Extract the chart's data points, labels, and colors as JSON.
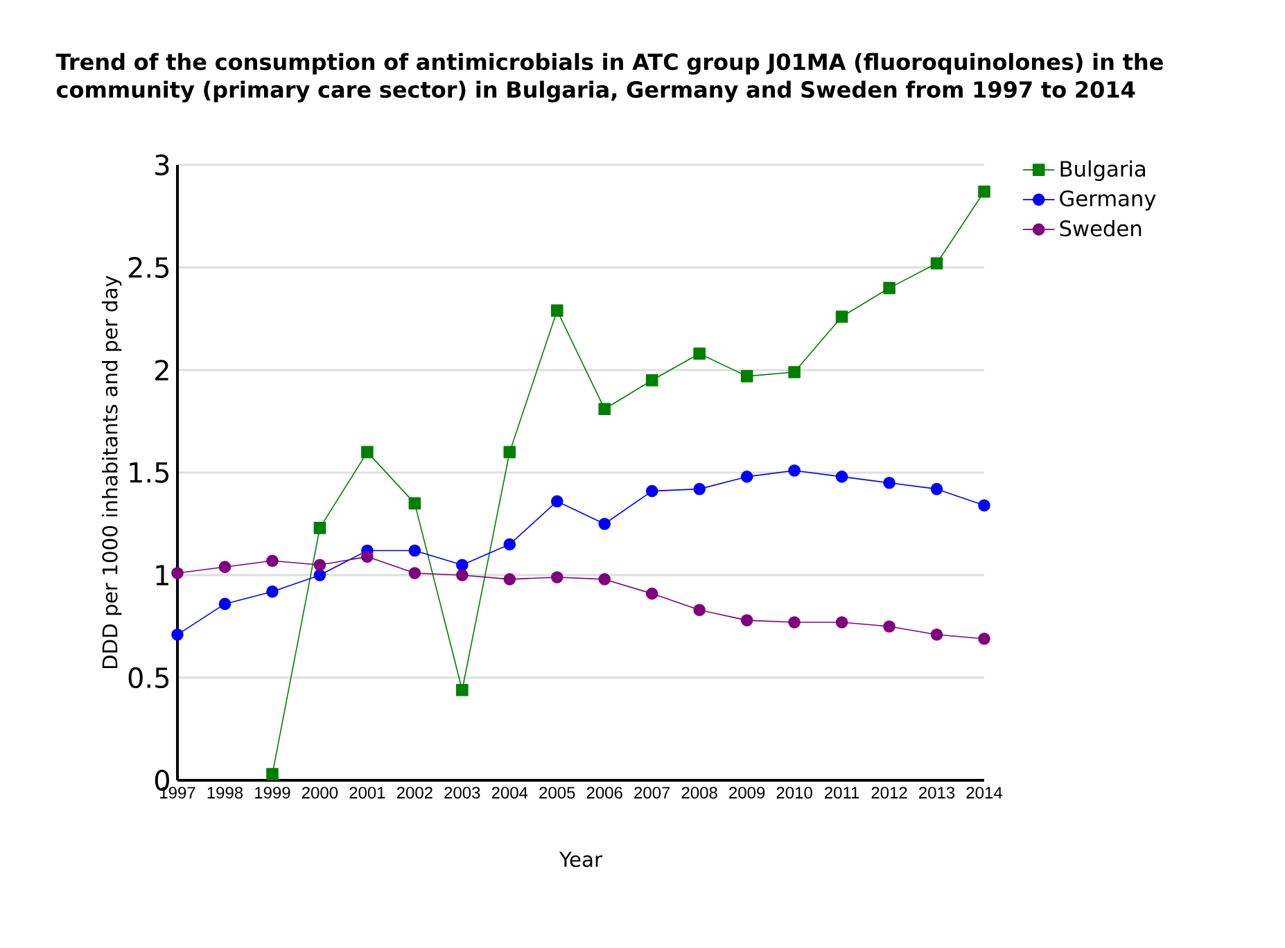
{
  "chart_data": {
    "type": "line",
    "title": "Trend of the consumption of antimicrobials in ATC group J01MA (fluoroquinolones) in the community (primary care sector) in Bulgaria, Germany and Sweden from 1997 to 2014",
    "xlabel": "Year",
    "ylabel": "DDD per 1000 inhabitants and per day",
    "x": [
      1997,
      1998,
      1999,
      2000,
      2001,
      2002,
      2003,
      2004,
      2005,
      2006,
      2007,
      2008,
      2009,
      2010,
      2011,
      2012,
      2013,
      2014
    ],
    "xlim": [
      1997,
      2014
    ],
    "xticks": [
      1997,
      1998,
      1999,
      2000,
      2001,
      2002,
      2003,
      2004,
      2005,
      2006,
      2007,
      2008,
      2009,
      2010,
      2011,
      2012,
      2013,
      2014
    ],
    "ylim": [
      0,
      3
    ],
    "yticks": [
      0,
      0.5,
      1,
      1.5,
      2,
      2.5,
      3
    ],
    "grid": "y",
    "legend": "top right",
    "line_style": "solid",
    "series": [
      {
        "name": "Bulgaria",
        "color": "#008000",
        "marker": "square",
        "values": [
          null,
          null,
          0.03,
          1.23,
          1.6,
          1.35,
          0.44,
          1.6,
          2.29,
          1.81,
          1.95,
          2.08,
          1.97,
          1.99,
          2.26,
          2.4,
          2.52,
          2.87
        ]
      },
      {
        "name": "Germany",
        "color": "#0000ff",
        "marker": "circle",
        "values": [
          0.71,
          0.86,
          0.92,
          1.0,
          1.12,
          1.12,
          1.05,
          1.15,
          1.36,
          1.25,
          1.41,
          1.42,
          1.48,
          1.51,
          1.48,
          1.45,
          1.42,
          1.34
        ]
      },
      {
        "name": "Sweden",
        "color": "#800080",
        "marker": "circle",
        "values": [
          1.01,
          1.04,
          1.07,
          1.05,
          1.09,
          1.01,
          1.0,
          0.98,
          0.99,
          0.98,
          0.91,
          0.83,
          0.78,
          0.77,
          0.77,
          0.75,
          0.71,
          0.69
        ]
      }
    ]
  }
}
